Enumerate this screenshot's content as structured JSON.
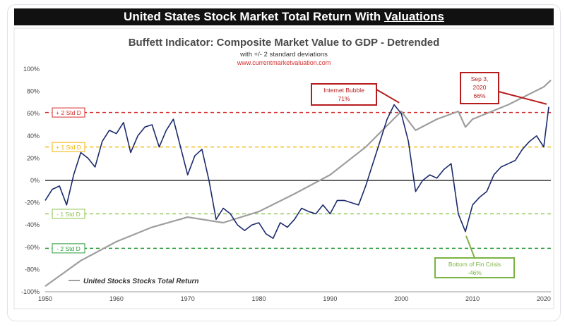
{
  "banner": {
    "title_prefix": "United States Stock Market Total Return With ",
    "title_link": "Valuations"
  },
  "chart_data": {
    "type": "line",
    "title": "Buffett Indicator: Composite Market Value to GDP - Detrended",
    "subtitle": "with +/- 2 standard deviations",
    "source": "www.currentmarketvaluation.com",
    "xlim": [
      1950,
      2021
    ],
    "ylim": [
      -100,
      100
    ],
    "x_ticks": [
      1950,
      1960,
      1970,
      1980,
      1990,
      2000,
      2010,
      2020
    ],
    "y_ticks": [
      100,
      80,
      60,
      40,
      20,
      0,
      -20,
      -40,
      -60,
      -80,
      -100
    ],
    "y_tick_labels": [
      "100%",
      "80%",
      "60%",
      "40%",
      "20%",
      "0%",
      "-20%",
      "-40%",
      "-60%",
      "-80%",
      "-100%"
    ],
    "grid": false,
    "reference_lines": [
      {
        "label": "+ 2 Std D",
        "value": 61,
        "color": "#d62828",
        "style": "dashed"
      },
      {
        "label": "+ 1 Std D",
        "value": 30,
        "color": "#f4b400",
        "style": "dashed"
      },
      {
        "label": "0%",
        "value": 0,
        "color": "#333333",
        "style": "solid"
      },
      {
        "label": "- 1 Std D",
        "value": -30,
        "color": "#8bc34a",
        "style": "dashed"
      },
      {
        "label": "- 2 Std D",
        "value": -61,
        "color": "#2e9e3e",
        "style": "dashed"
      }
    ],
    "series": [
      {
        "name": "Buffett Indicator",
        "color": "#1b2a6b",
        "x": [
          1950,
          1951,
          1952,
          1953,
          1954,
          1955,
          1956,
          1957,
          1958,
          1959,
          1960,
          1961,
          1962,
          1963,
          1964,
          1965,
          1966,
          1967,
          1968,
          1969,
          1970,
          1971,
          1972,
          1973,
          1974,
          1975,
          1976,
          1977,
          1978,
          1979,
          1980,
          1981,
          1982,
          1983,
          1984,
          1985,
          1986,
          1987,
          1988,
          1989,
          1990,
          1991,
          1992,
          1993,
          1994,
          1995,
          1996,
          1997,
          1998,
          1999,
          2000,
          2001,
          2002,
          2003,
          2004,
          2005,
          2006,
          2007,
          2008,
          2009,
          2010,
          2011,
          2012,
          2013,
          2014,
          2015,
          2016,
          2017,
          2018,
          2019,
          2020,
          2020.7
        ],
        "values": [
          -18,
          -8,
          -5,
          -22,
          5,
          25,
          20,
          12,
          35,
          45,
          42,
          52,
          25,
          40,
          48,
          50,
          30,
          45,
          55,
          30,
          5,
          22,
          28,
          0,
          -35,
          -25,
          -30,
          -40,
          -45,
          -40,
          -38,
          -48,
          -52,
          -38,
          -42,
          -35,
          -25,
          -28,
          -30,
          -22,
          -30,
          -18,
          -18,
          -20,
          -22,
          -5,
          15,
          35,
          55,
          68,
          60,
          35,
          -10,
          0,
          5,
          2,
          10,
          15,
          -30,
          -46,
          -22,
          -15,
          -10,
          5,
          12,
          15,
          18,
          28,
          35,
          40,
          30,
          66
        ]
      },
      {
        "name": "United Stocks Stocks Total Return",
        "color": "#9e9e9e",
        "x": [
          1950,
          1955,
          1960,
          1965,
          1970,
          1975,
          1980,
          1985,
          1990,
          1995,
          2000,
          2002,
          2005,
          2008,
          2009,
          2010,
          2015,
          2020,
          2021
        ],
        "values": [
          -95,
          -72,
          -55,
          -42,
          -33,
          -38,
          -28,
          -12,
          5,
          30,
          62,
          45,
          55,
          62,
          48,
          55,
          68,
          84,
          90
        ]
      }
    ],
    "annotations": [
      {
        "text": "Internet Bubble",
        "value_text": "71%",
        "x": 2000,
        "y": 71,
        "color": "#b71c1c"
      },
      {
        "text": "Sep 3,",
        "text2": "2020",
        "value_text": "66%",
        "x": 2020.7,
        "y": 66,
        "color": "#b71c1c"
      },
      {
        "text": "Bottom of Fin Crisis",
        "value_text": "-46%",
        "x": 2009,
        "y": -46,
        "color": "#7cb342"
      }
    ]
  }
}
